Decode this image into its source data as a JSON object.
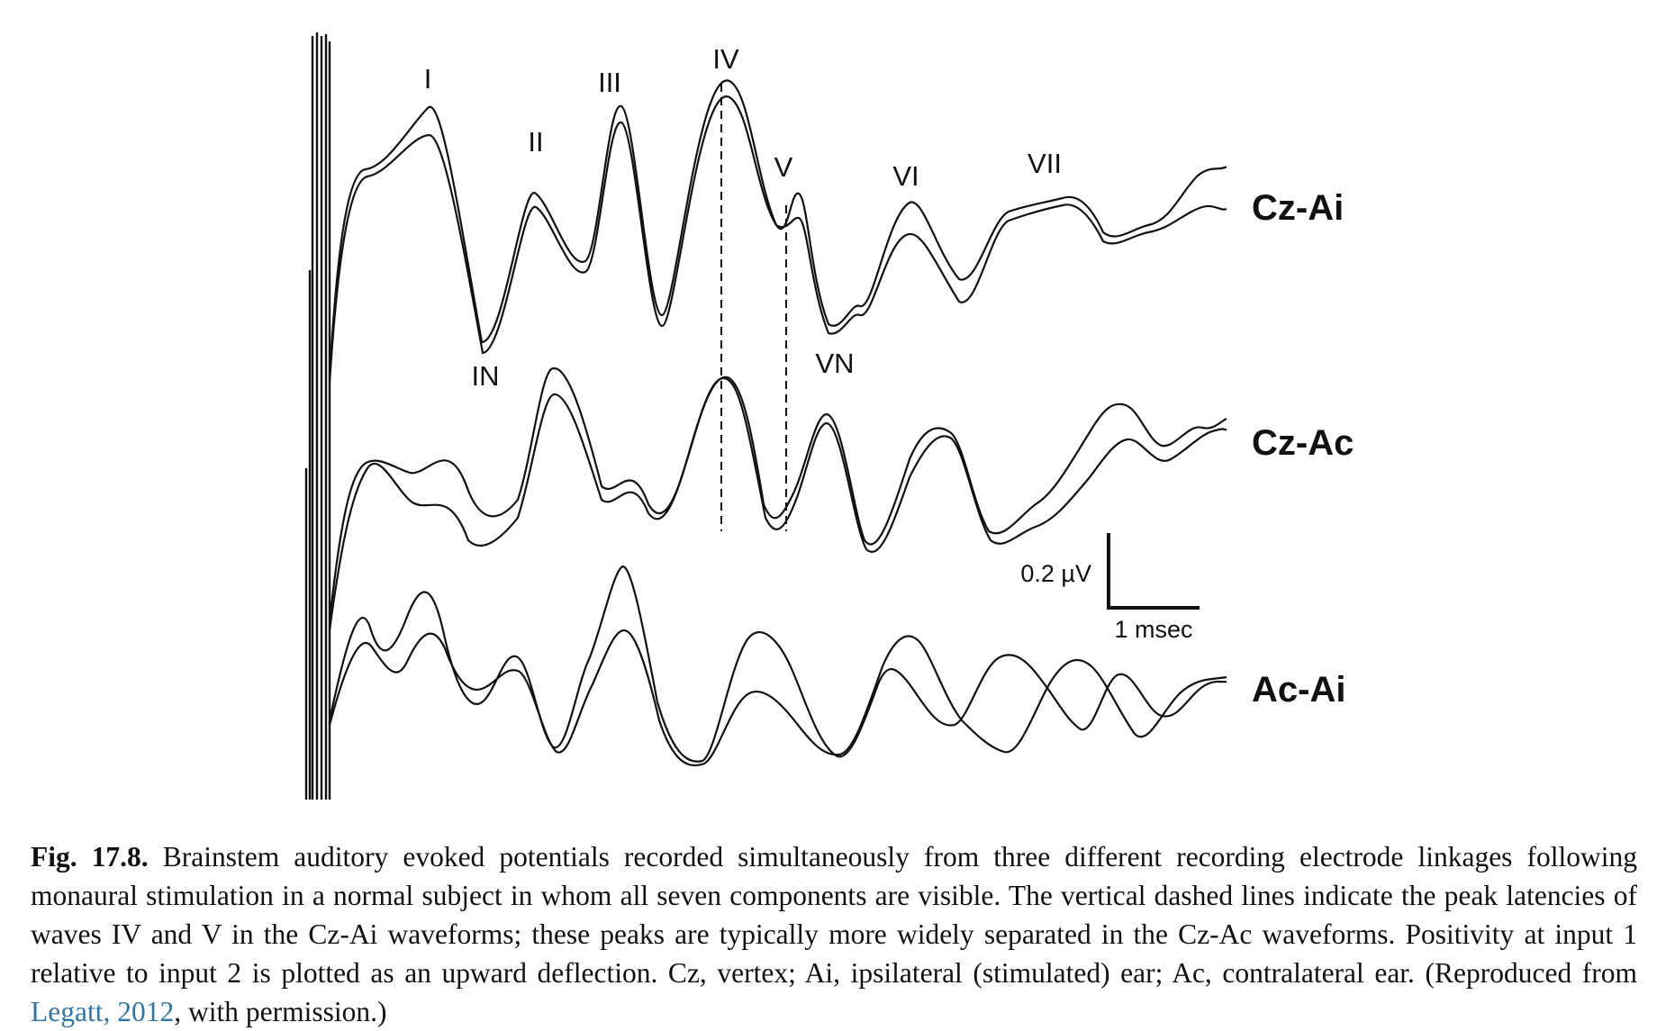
{
  "figure": {
    "peak_labels": [
      "I",
      "II",
      "III",
      "IV",
      "V",
      "VI",
      "VII",
      "IN",
      "VN"
    ],
    "traces": [
      {
        "name": "Cz-Ai"
      },
      {
        "name": "Cz-Ac"
      },
      {
        "name": "Ac-Ai"
      }
    ],
    "scale_bar": {
      "amplitude": "0.2 µV",
      "time": "1 msec"
    }
  },
  "caption": {
    "figure_number": "Fig. 17.8.",
    "text_before_citation": "Brainstem auditory evoked potentials recorded simultaneously from three different recording electrode linkages following monaural stimulation in a normal subject in whom all seven components are visible. The vertical dashed lines indicate the peak latencies of waves IV and V in the Cz-Ai waveforms; these peaks are typically more widely separated in the Cz-Ac waveforms. Positivity at input 1 relative to input 2 is plotted as an upward deflection. Cz, vertex; Ai, ipsilateral (stimulated) ear; Ac, contralateral ear. (Reproduced from",
    "citation": "Legatt, 2012",
    "text_after_citation": ", with permission.)"
  }
}
